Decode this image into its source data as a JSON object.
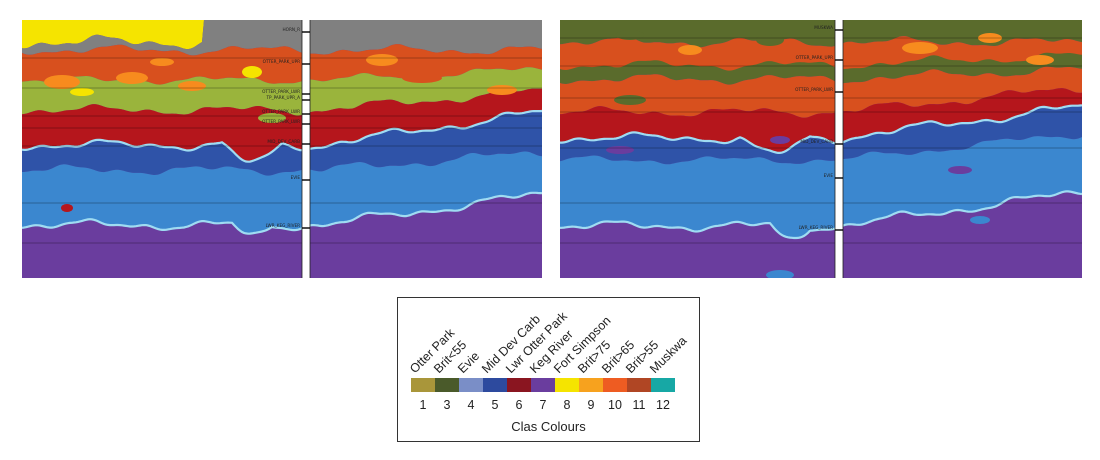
{
  "colors": {
    "background_bottom": "#6a3d9e",
    "gray": "#808080",
    "yellow": "#f5e400",
    "olive_dark": "#5a6b2c",
    "orange_red": "#d8501e",
    "orange": "#f78b1e",
    "lime": "#9ab43c",
    "red": "#b5161c",
    "blue_mid": "#2f53a8",
    "blue_light": "#3b87cf",
    "horizon_line": "#9fdcf2"
  },
  "sections": {
    "left": {
      "horizon_labels": [
        "HORN_R",
        "OTTER_PARK_UPR",
        "OTTER_PARK_LWR",
        "TP_PARK_UPR_A",
        "OTTER_PARK_LWR",
        "OTTER_PARK_LWR",
        "MID_DEV_CARB",
        "EVIE",
        "LWR_KEG_RIVER"
      ]
    },
    "right": {
      "horizon_labels": [
        "MUSKWA",
        "OTTER_PARK_UPR",
        "OTTER_PARK_LWR",
        "MID_DEV_CARB",
        "EVIE",
        "LWR_KEG_RIVER"
      ]
    }
  },
  "legend": {
    "items": [
      {
        "name": "Otter Park",
        "number": "1",
        "color": "#a9963a"
      },
      {
        "name": "Brit<55",
        "number": "3",
        "color": "#4a5a2a"
      },
      {
        "name": "Evie",
        "number": "4",
        "color": "#7a8ec7"
      },
      {
        "name": "Mid Dev Carb",
        "number": "5",
        "color": "#2d4a9e"
      },
      {
        "name": "Lwr Otter Park",
        "number": "6",
        "color": "#8a1520"
      },
      {
        "name": "Keg River",
        "number": "7",
        "color": "#6a3d9e"
      },
      {
        "name": "Fort Simpson",
        "number": "8",
        "color": "#f5e400"
      },
      {
        "name": "Brit>75",
        "number": "9",
        "color": "#f7a21e"
      },
      {
        "name": "Brit>65",
        "number": "10",
        "color": "#ee5c22"
      },
      {
        "name": "Brit>55",
        "number": "11",
        "color": "#b04624"
      },
      {
        "name": "Muskwa",
        "number": "12",
        "color": "#17a8a5"
      }
    ],
    "title": "Clas Colours"
  }
}
